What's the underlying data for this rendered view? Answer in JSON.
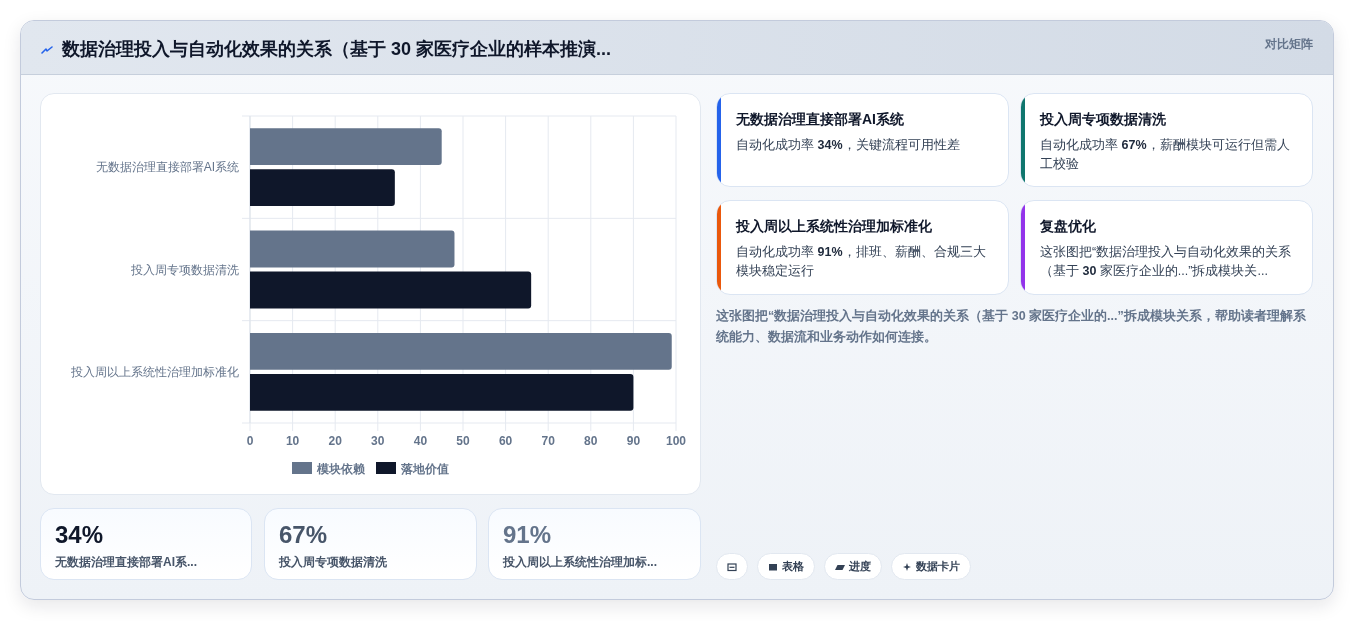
{
  "chart_data": [
    {
      "type": "other",
      "title": "数据治理投入与自动化效果的关系（基于 30 家医疗企业的样本推演...",
      "subtitle": "对比矩阵"
    },
    {
      "type": "bar",
      "orientation": "horizontal",
      "categories": [
        "无数据治理直接部署AI系统",
        "投入周专项数据清洗",
        "投入周以上系统性治理加标准化"
      ],
      "series": [
        {
          "name": "模块依赖",
          "color": "#64748b",
          "values": [
            45,
            48,
            99
          ]
        },
        {
          "name": "落地价值",
          "color": "#0f172a",
          "values": [
            34,
            66,
            90
          ]
        }
      ],
      "xlim": [
        0,
        100
      ],
      "xticks": [
        0,
        10,
        20,
        30,
        40,
        50,
        60,
        70,
        80,
        90,
        100
      ],
      "grid": true,
      "legend": "bottom"
    },
    {
      "type": "other",
      "title": "无数据治理直接部署AI系统",
      "subtitle": "自动化成功率 34%，关键流程可用性差",
      "colors": [
        "#2563eb"
      ]
    },
    {
      "type": "other",
      "title": "投入周专项数据清洗",
      "subtitle": "自动化成功率 67%，薪酬模块可运行但需人工校验",
      "colors": [
        "#0f766e"
      ]
    },
    {
      "type": "other",
      "title": "投入周以上系统性治理加标准化",
      "subtitle": "自动化成功率 91%，排班、薪酬、合规三大模块稳定运行",
      "colors": [
        "#ea580c"
      ]
    },
    {
      "type": "other",
      "title": "复盘优化",
      "subtitle": "这张图把“数据治理投入与自动化效果的关系（基于 30 家医疗企业的...”拆成模块关...",
      "colors": [
        "#9333ea"
      ]
    },
    {
      "type": "other",
      "annotations": [
        "这张图把“数据治理投入与自动化效果的关系（基于 30 家医疗企业的...”拆成模块关系，帮助读者理解系统能力、数据流和业务动作如何连接。"
      ]
    },
    {
      "type": "other",
      "title": "34%",
      "subtitle": "无数据治理直接部署AI系...",
      "colors": [
        "#0f172a"
      ]
    },
    {
      "type": "other",
      "title": "67%",
      "subtitle": "投入周专项数据清洗",
      "colors": [
        "#475569"
      ]
    },
    {
      "type": "other",
      "title": "91%",
      "subtitle": "投入周以上系统性治理加标...",
      "colors": [
        "#64748b"
      ]
    },
    {
      "type": "other",
      "categories": [
        null,
        "表格",
        "进度",
        "数据卡片"
      ]
    }
  ]
}
